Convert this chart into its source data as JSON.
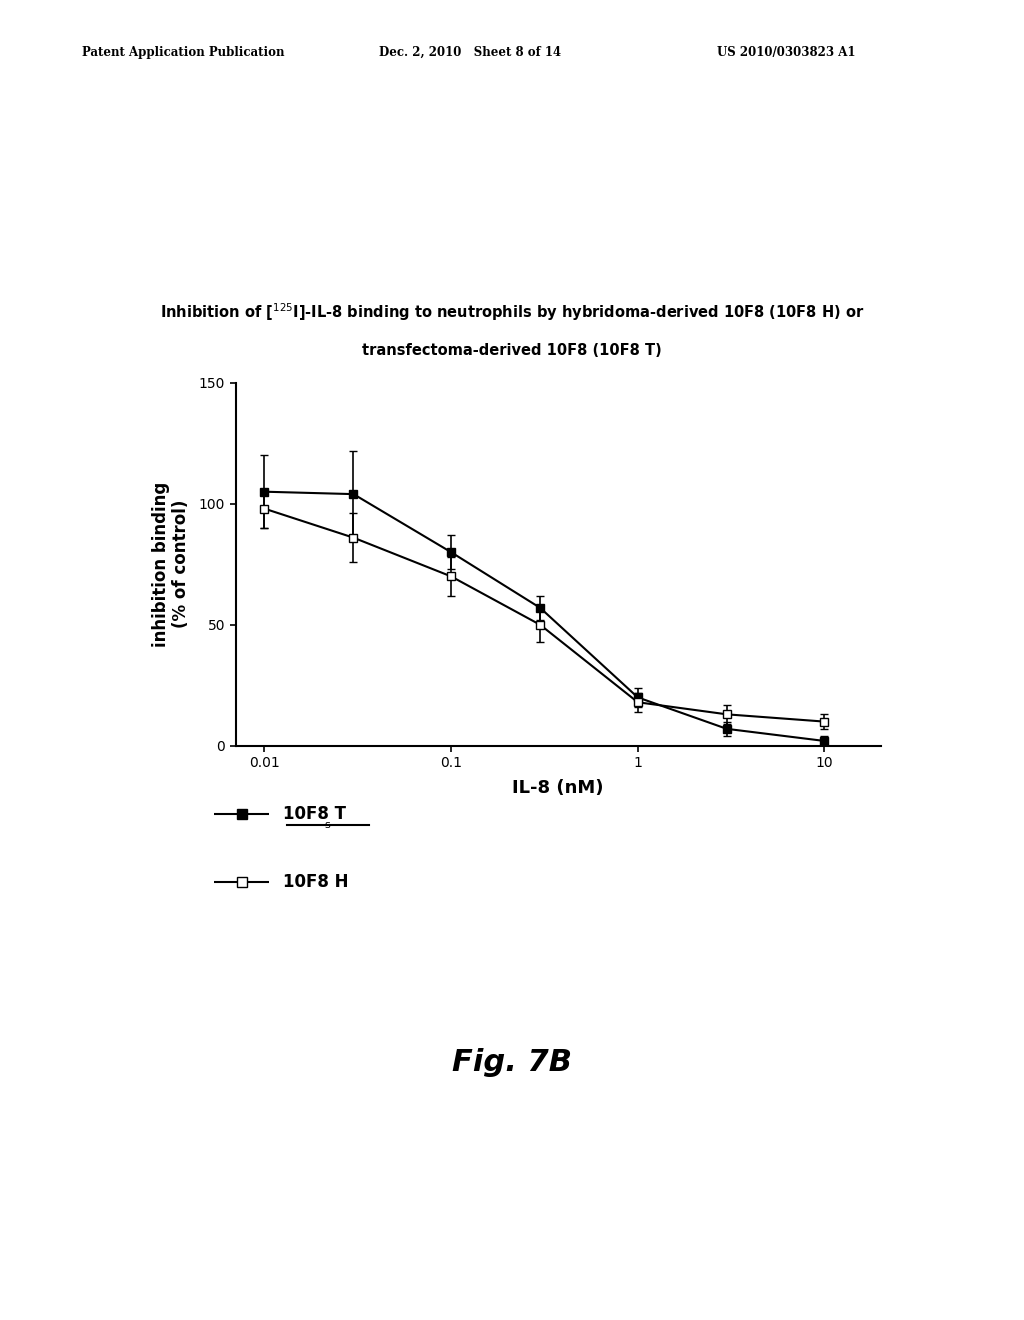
{
  "title_line1": "Inhibition of [$^{125}$I]-IL-8 binding to neutrophils by hybridoma-derived 10F8 (10F8 H) or",
  "title_line2": "transfectoma-derived 10F8 (10F8 T)",
  "xlabel": "IL-8 (nM)",
  "ylabel_line1": "inhibition binding",
  "ylabel_line2": "(% of control)",
  "header_left": "Patent Application Publication",
  "header_mid": "Dec. 2, 2010   Sheet 8 of 14",
  "header_right": "US 2010/0303823 A1",
  "fig_label": "Fig. 7B",
  "x_values": [
    0.01,
    0.03,
    0.1,
    0.3,
    1.0,
    3.0,
    10.0
  ],
  "series_T_y": [
    105,
    104,
    80,
    57,
    20,
    7,
    2
  ],
  "series_T_yerr": [
    15,
    18,
    7,
    5,
    4,
    3,
    2
  ],
  "series_H_y": [
    98,
    86,
    70,
    50,
    18,
    13,
    10
  ],
  "series_H_yerr": [
    8,
    10,
    8,
    7,
    4,
    4,
    3
  ],
  "ylim_min": 0,
  "ylim_max": 150,
  "yticks": [
    0,
    50,
    100,
    150
  ],
  "xlim_min": 0.007,
  "xlim_max": 20,
  "legend_T": "10F8 T",
  "legend_H": "10F8 H",
  "color_T": "#000000",
  "color_H": "#000000",
  "background_color": "#ffffff",
  "title_fontsize": 10.5,
  "axis_label_fontsize": 12,
  "tick_fontsize": 10,
  "legend_fontsize": 12,
  "fig_label_fontsize": 22
}
